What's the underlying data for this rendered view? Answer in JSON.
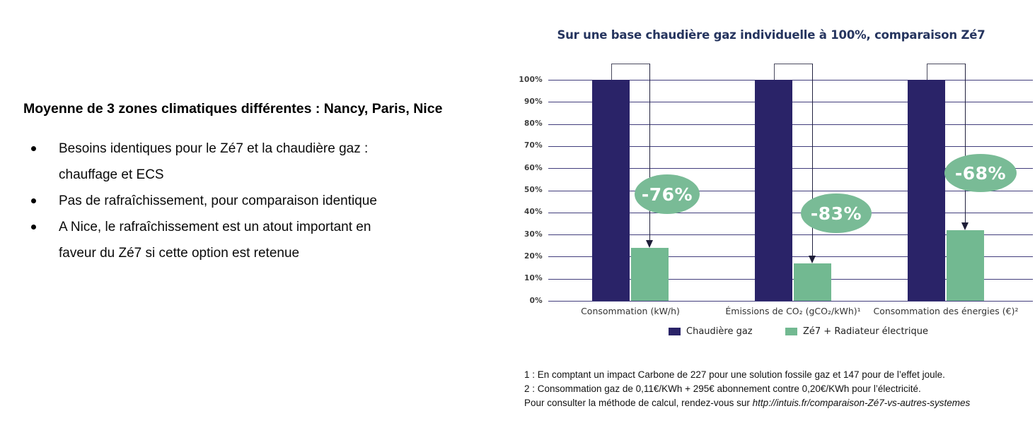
{
  "left_panel": {
    "heading": "Moyenne de 3 zones climatiques différentes : Nancy, Paris, Nice",
    "bullets": [
      {
        "lines": [
          "Besoins identiques pour le Zé7 et la chaudière gaz :",
          "chauffage et ECS"
        ]
      },
      {
        "lines": [
          "Pas de rafraîchissement, pour comparaison identique"
        ]
      },
      {
        "lines": [
          "A Nice, le rafraîchissement est un atout important en",
          "faveur du Zé7 si cette option est retenue"
        ]
      }
    ]
  },
  "chart": {
    "colors": {
      "gas_bar": "#2a2368",
      "ze7_bar": "#72b991",
      "annotation_bg": "#79bb96",
      "annotation_text": "#ffffff"
    }
  },
  "chart_data": {
    "type": "bar",
    "title": "Sur une base chaudière gaz individuelle à 100%, comparaison Zé7",
    "categories": [
      "Consommation (kW/h)",
      "Émissions de CO₂ (gCO₂/kWh)¹",
      "Consommation des énergies (€)²"
    ],
    "series": [
      {
        "name": "Chaudière gaz",
        "color": "#2a2368",
        "values": [
          100,
          100,
          100
        ]
      },
      {
        "name": "Zé7 + Radiateur électrique",
        "color": "#72b991",
        "values": [
          24,
          17,
          32
        ]
      }
    ],
    "annotations": [
      "-76%",
      "-83%",
      "-68%"
    ],
    "ylim": [
      0,
      100
    ],
    "yticks": [
      "100%",
      "90%",
      "80%",
      "70%",
      "60%",
      "50%",
      "40%",
      "30%",
      "20%",
      "10%",
      "0%"
    ],
    "grid": true,
    "legend_position": "bottom"
  },
  "footnotes": {
    "line1": "1 : En comptant un impact Carbone de 227 pour une solution fossile gaz et 147 pour de l’effet joule.",
    "line2": "2 : Consommation gaz de 0,11€/KWh + 295€ abonnement contre 0,20€/KWh pour l’électricité.",
    "line3_prefix": "Pour consulter la méthode de calcul, rendez-vous sur ",
    "line3_url": "http://intuis.fr/comparaison-Zé7-vs-autres-systemes"
  }
}
